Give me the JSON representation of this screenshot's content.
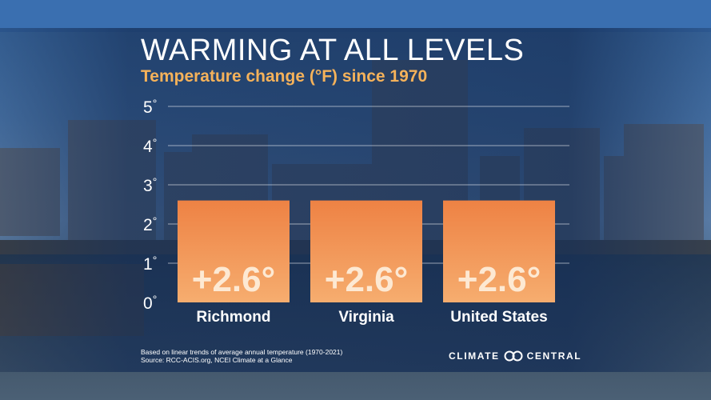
{
  "header": {
    "title": "WARMING AT ALL LEVELS",
    "subtitle": "Temperature change (°F) since 1970"
  },
  "chart_data": {
    "type": "bar",
    "title": "WARMING AT ALL LEVELS",
    "subtitle": "Temperature change (°F) since 1970",
    "categories": [
      "Richmond",
      "Virginia",
      "United States"
    ],
    "values": [
      2.6,
      2.6,
      2.6
    ],
    "value_labels": [
      "+2.6°",
      "+2.6°",
      "+2.6°"
    ],
    "yticks": [
      0,
      1,
      2,
      3,
      4,
      5
    ],
    "ylim": [
      0,
      5
    ],
    "grid": true,
    "bar_color": "#f0874a",
    "bar_color_top": "#ee8244",
    "bar_color_bottom": "#f6ad6f"
  },
  "footer": {
    "note_line1": "Based on linear trends of average annual temperature (1970-2021)",
    "note_line2": "Source: RCC-ACIS.org, NCEI Climate at a Glance",
    "brand_left": "CLIMATE",
    "brand_right": "CENTRAL",
    "logo_icon": "climate-central-logo-icon"
  },
  "colors": {
    "title": "#ffffff",
    "subtitle": "#f5b25a",
    "overlay": "#142d55"
  }
}
